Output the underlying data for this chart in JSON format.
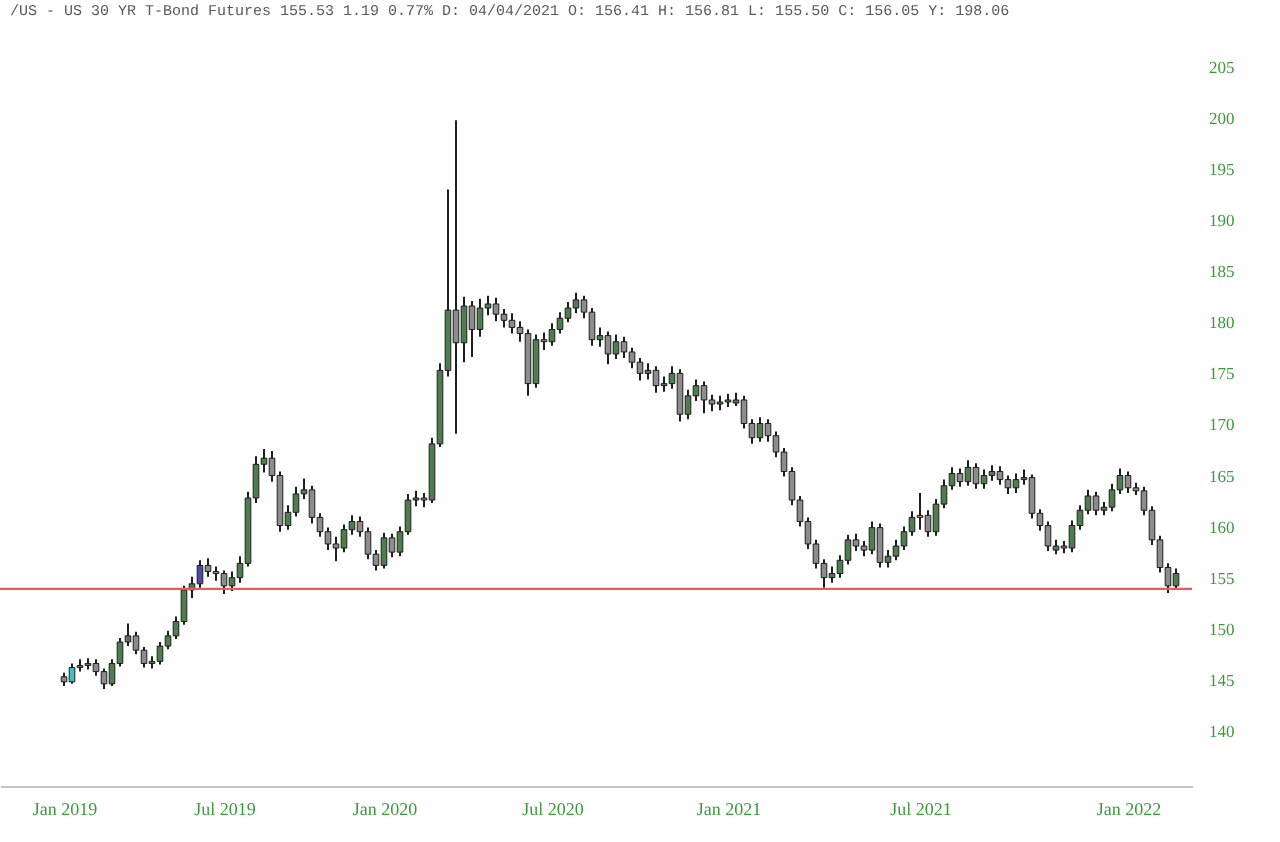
{
  "chart_data": {
    "type": "candlestick",
    "title": "/US - US 30 YR T-Bond Futures 155.53 1.19 0.77% D: 04/04/2021 O: 156.41 H: 156.81 L: 155.50 C: 156.05 Y: 198.06",
    "categories": [
      "Jan 2019",
      null,
      null,
      null,
      null,
      null,
      null,
      null,
      null,
      null,
      null,
      null,
      null,
      null,
      null,
      null,
      null,
      null,
      null,
      null,
      "Jul 2019",
      null,
      null,
      null,
      null,
      null,
      null,
      null,
      null,
      null,
      null,
      null,
      null,
      null,
      null,
      null,
      null,
      null,
      null,
      null,
      "Jan 2020",
      null,
      null,
      null,
      null,
      null,
      null,
      null,
      null,
      null,
      null,
      null,
      null,
      null,
      null,
      null,
      null,
      null,
      null,
      null,
      null,
      "Jul 2020",
      null,
      null,
      null,
      null,
      null,
      null,
      null,
      null,
      null,
      null,
      null,
      null,
      null,
      null,
      null,
      null,
      null,
      null,
      null,
      null,
      null,
      "Jan 2021",
      null,
      null,
      null,
      null,
      null,
      null,
      null,
      null,
      null,
      null,
      null,
      null,
      null,
      null,
      null,
      null,
      null,
      null,
      null,
      null,
      null,
      null,
      null,
      "Jul 2021",
      null,
      null,
      null,
      null,
      null,
      null,
      null,
      null,
      null,
      null,
      null,
      null,
      null,
      null,
      null,
      null,
      null,
      null,
      null,
      null,
      null,
      null,
      null,
      null,
      null,
      "Jan 2022",
      null,
      null,
      null,
      null,
      null,
      null
    ],
    "ohlc": [
      [
        145.2,
        145.6,
        144.3,
        144.7
      ],
      [
        144.7,
        146.5,
        144.5,
        146.1
      ],
      [
        146.1,
        146.9,
        145.7,
        146.3
      ],
      [
        146.3,
        147.0,
        145.9,
        146.5
      ],
      [
        146.5,
        146.9,
        145.3,
        145.7
      ],
      [
        145.7,
        146.0,
        144.0,
        144.5
      ],
      [
        144.5,
        146.9,
        144.3,
        146.5
      ],
      [
        146.5,
        149.0,
        146.2,
        148.6
      ],
      [
        148.6,
        150.4,
        148.2,
        149.2
      ],
      [
        149.2,
        149.6,
        147.4,
        147.8
      ],
      [
        147.8,
        148.1,
        146.1,
        146.5
      ],
      [
        146.5,
        147.2,
        146.0,
        146.7
      ],
      [
        146.7,
        148.6,
        146.4,
        148.2
      ],
      [
        148.2,
        149.7,
        147.9,
        149.2
      ],
      [
        149.2,
        151.1,
        148.9,
        150.6
      ],
      [
        150.6,
        154.1,
        150.3,
        153.7
      ],
      [
        153.7,
        155.0,
        152.9,
        154.3
      ],
      [
        154.3,
        156.6,
        153.9,
        156.1
      ],
      [
        156.1,
        156.8,
        155.0,
        155.5
      ],
      [
        155.5,
        156.0,
        154.6,
        155.3
      ],
      [
        155.3,
        155.6,
        153.3,
        154.1
      ],
      [
        154.1,
        155.5,
        153.6,
        154.9
      ],
      [
        154.9,
        157.0,
        154.4,
        156.3
      ],
      [
        156.3,
        163.3,
        156.0,
        162.7
      ],
      [
        162.7,
        166.8,
        162.2,
        166.0
      ],
      [
        166.0,
        167.5,
        165.2,
        166.6
      ],
      [
        166.6,
        167.3,
        164.3,
        164.9
      ],
      [
        164.9,
        165.3,
        159.4,
        160.0
      ],
      [
        160.0,
        162.0,
        159.6,
        161.3
      ],
      [
        161.3,
        163.8,
        160.9,
        163.1
      ],
      [
        163.1,
        164.6,
        162.6,
        163.5
      ],
      [
        163.5,
        163.9,
        160.2,
        160.8
      ],
      [
        160.8,
        161.2,
        158.9,
        159.4
      ],
      [
        159.4,
        159.8,
        157.6,
        158.2
      ],
      [
        158.2,
        158.9,
        156.5,
        157.8
      ],
      [
        157.8,
        160.1,
        157.4,
        159.6
      ],
      [
        159.6,
        161.0,
        159.1,
        160.4
      ],
      [
        160.4,
        160.9,
        158.9,
        159.4
      ],
      [
        159.4,
        159.8,
        156.7,
        157.2
      ],
      [
        157.2,
        157.6,
        155.6,
        156.1
      ],
      [
        156.1,
        159.3,
        155.8,
        158.8
      ],
      [
        158.8,
        159.2,
        156.9,
        157.4
      ],
      [
        157.4,
        159.9,
        157.0,
        159.4
      ],
      [
        159.4,
        163.1,
        159.1,
        162.5
      ],
      [
        162.5,
        163.4,
        161.9,
        162.7
      ],
      [
        162.7,
        163.2,
        161.8,
        162.5
      ],
      [
        162.5,
        168.6,
        162.2,
        168.0
      ],
      [
        168.0,
        175.9,
        167.7,
        175.2
      ],
      [
        175.2,
        192.9,
        174.6,
        181.1
      ],
      [
        181.1,
        199.7,
        169.0,
        177.9
      ],
      [
        177.9,
        182.4,
        176.0,
        181.5
      ],
      [
        181.5,
        182.0,
        176.5,
        179.2
      ],
      [
        179.2,
        182.2,
        178.5,
        181.3
      ],
      [
        181.3,
        182.5,
        180.6,
        181.7
      ],
      [
        181.7,
        182.3,
        180.0,
        180.7
      ],
      [
        180.7,
        181.2,
        179.4,
        180.1
      ],
      [
        180.1,
        180.8,
        178.8,
        179.4
      ],
      [
        179.4,
        180.0,
        178.0,
        178.8
      ],
      [
        178.8,
        179.2,
        172.7,
        173.9
      ],
      [
        173.9,
        178.7,
        173.5,
        178.2
      ],
      [
        178.2,
        178.9,
        177.2,
        178.0
      ],
      [
        178.0,
        179.8,
        177.6,
        179.2
      ],
      [
        179.2,
        180.9,
        178.8,
        180.3
      ],
      [
        180.3,
        181.9,
        179.9,
        181.3
      ],
      [
        181.3,
        182.8,
        180.8,
        182.1
      ],
      [
        182.1,
        182.5,
        180.3,
        180.9
      ],
      [
        180.9,
        181.3,
        177.6,
        178.2
      ],
      [
        178.2,
        179.4,
        177.5,
        178.6
      ],
      [
        178.6,
        179.0,
        175.8,
        176.8
      ],
      [
        176.8,
        178.7,
        176.3,
        178.0
      ],
      [
        178.0,
        178.5,
        176.4,
        177.0
      ],
      [
        177.0,
        177.4,
        175.4,
        176.0
      ],
      [
        176.0,
        176.4,
        174.2,
        174.9
      ],
      [
        174.9,
        175.9,
        174.3,
        175.2
      ],
      [
        175.2,
        175.6,
        173.0,
        173.7
      ],
      [
        173.7,
        174.6,
        173.1,
        173.9
      ],
      [
        173.9,
        175.6,
        173.4,
        174.9
      ],
      [
        174.9,
        175.3,
        170.2,
        170.9
      ],
      [
        170.9,
        173.3,
        170.4,
        172.7
      ],
      [
        172.7,
        174.3,
        172.2,
        173.7
      ],
      [
        173.7,
        174.1,
        171.0,
        172.3
      ],
      [
        172.3,
        172.8,
        171.2,
        171.9
      ],
      [
        171.9,
        172.7,
        171.3,
        172.1
      ],
      [
        172.1,
        172.9,
        171.6,
        172.3
      ],
      [
        172.0,
        173.0,
        171.7,
        172.3
      ],
      [
        172.3,
        172.7,
        169.5,
        170.0
      ],
      [
        170.0,
        170.4,
        168.0,
        168.6
      ],
      [
        168.6,
        170.6,
        168.2,
        170.0
      ],
      [
        170.0,
        170.4,
        168.2,
        168.8
      ],
      [
        168.8,
        169.2,
        166.7,
        167.2
      ],
      [
        167.2,
        167.6,
        164.8,
        165.3
      ],
      [
        165.3,
        165.7,
        162.0,
        162.5
      ],
      [
        162.5,
        162.9,
        159.9,
        160.4
      ],
      [
        160.4,
        160.8,
        157.7,
        158.2
      ],
      [
        158.2,
        158.6,
        155.8,
        156.3
      ],
      [
        156.3,
        156.7,
        153.9,
        154.9
      ],
      [
        154.9,
        156.0,
        154.4,
        155.3
      ],
      [
        155.3,
        157.1,
        154.9,
        156.6
      ],
      [
        156.6,
        159.1,
        156.2,
        158.6
      ],
      [
        158.6,
        159.2,
        157.5,
        158.0
      ],
      [
        158.0,
        158.5,
        157.0,
        157.6
      ],
      [
        157.6,
        160.4,
        157.2,
        159.8
      ],
      [
        159.8,
        160.2,
        155.9,
        156.4
      ],
      [
        156.4,
        157.6,
        155.9,
        157.0
      ],
      [
        157.0,
        158.6,
        156.6,
        158.0
      ],
      [
        158.0,
        159.9,
        157.6,
        159.4
      ],
      [
        159.4,
        161.4,
        159.0,
        160.8
      ],
      [
        160.8,
        163.2,
        159.6,
        161.0
      ],
      [
        161.0,
        161.5,
        158.9,
        159.4
      ],
      [
        159.4,
        162.6,
        159.0,
        162.1
      ],
      [
        162.1,
        164.5,
        161.7,
        163.9
      ],
      [
        163.9,
        165.7,
        163.5,
        165.1
      ],
      [
        165.1,
        165.6,
        163.8,
        164.3
      ],
      [
        164.3,
        166.4,
        163.9,
        165.7
      ],
      [
        165.7,
        166.1,
        163.6,
        164.1
      ],
      [
        164.1,
        165.5,
        163.6,
        164.9
      ],
      [
        164.9,
        165.9,
        164.4,
        165.3
      ],
      [
        165.3,
        165.8,
        164.0,
        164.5
      ],
      [
        164.5,
        164.9,
        163.1,
        163.7
      ],
      [
        163.7,
        165.1,
        163.2,
        164.5
      ],
      [
        164.5,
        165.5,
        164.0,
        164.7
      ],
      [
        164.7,
        165.0,
        160.7,
        161.2
      ],
      [
        161.2,
        161.6,
        159.5,
        160.0
      ],
      [
        160.0,
        160.4,
        157.5,
        158.0
      ],
      [
        157.6,
        158.6,
        157.2,
        158.0
      ],
      [
        158.0,
        158.5,
        157.3,
        157.8
      ],
      [
        157.8,
        160.5,
        157.4,
        160.0
      ],
      [
        160.0,
        162.0,
        159.6,
        161.5
      ],
      [
        161.5,
        163.5,
        161.1,
        162.9
      ],
      [
        162.9,
        163.3,
        161.0,
        161.5
      ],
      [
        161.5,
        162.3,
        161.0,
        161.8
      ],
      [
        161.8,
        164.1,
        161.4,
        163.5
      ],
      [
        163.5,
        165.6,
        163.1,
        164.9
      ],
      [
        164.9,
        165.3,
        163.2,
        163.7
      ],
      [
        163.7,
        164.2,
        163.0,
        163.4
      ],
      [
        163.4,
        163.8,
        161.0,
        161.5
      ],
      [
        161.5,
        161.9,
        158.1,
        158.6
      ],
      [
        158.6,
        159.0,
        155.4,
        155.9
      ],
      [
        155.9,
        156.3,
        153.4,
        154.1
      ],
      [
        154.1,
        155.8,
        153.7,
        155.3
      ]
    ],
    "colors": [
      "#8c8c8c",
      "#3fbfbf",
      "#4e7d4e",
      "#4e7d4e",
      "#8c8c8c",
      "#8c8c8c",
      "#4e7d4e",
      "#4e7d4e",
      "#4e7d4e",
      "#8c8c8c",
      "#8c8c8c",
      "#4e7d4e",
      "#4e7d4e",
      "#4e7d4e",
      "#4e7d4e",
      "#4e7d4e",
      "#4e7d4e",
      "#4a4aa8",
      "#8c8c8c",
      "#8c8c8c",
      "#8c8c8c",
      "#4e7d4e",
      "#4e7d4e",
      "#4e7d4e",
      "#4e7d4e",
      "#4e7d4e",
      "#8c8c8c",
      "#8c8c8c",
      "#4e7d4e",
      "#4e7d4e",
      "#4e7d4e",
      "#8c8c8c",
      "#8c8c8c",
      "#8c8c8c",
      "#8c8c8c",
      "#4e7d4e",
      "#4e7d4e",
      "#8c8c8c",
      "#8c8c8c",
      "#8c8c8c",
      "#4e7d4e",
      "#8c8c8c",
      "#4e7d4e",
      "#4e7d4e",
      "#4e7d4e",
      "#8c8c8c",
      "#4e7d4e",
      "#4e7d4e",
      "#4e7d4e",
      "#8c8c8c",
      "#4e7d4e",
      "#8c8c8c",
      "#4e7d4e",
      "#4e7d4e",
      "#8c8c8c",
      "#8c8c8c",
      "#8c8c8c",
      "#8c8c8c",
      "#8c8c8c",
      "#4e7d4e",
      "#8c8c8c",
      "#4e7d4e",
      "#4e7d4e",
      "#4e7d4e",
      "#4e7d4e",
      "#8c8c8c",
      "#8c8c8c",
      "#4e7d4e",
      "#8c8c8c",
      "#4e7d4e",
      "#8c8c8c",
      "#8c8c8c",
      "#8c8c8c",
      "#4e7d4e",
      "#8c8c8c",
      "#4e7d4e",
      "#4e7d4e",
      "#8c8c8c",
      "#4e7d4e",
      "#4e7d4e",
      "#8c8c8c",
      "#8c8c8c",
      "#4e7d4e",
      "#4e7d4e",
      "#4e7d4e",
      "#8c8c8c",
      "#8c8c8c",
      "#4e7d4e",
      "#8c8c8c",
      "#8c8c8c",
      "#8c8c8c",
      "#8c8c8c",
      "#8c8c8c",
      "#8c8c8c",
      "#8c8c8c",
      "#8c8c8c",
      "#4e7d4e",
      "#4e7d4e",
      "#4e7d4e",
      "#8c8c8c",
      "#8c8c8c",
      "#4e7d4e",
      "#8c8c8c",
      "#4e7d4e",
      "#4e7d4e",
      "#4e7d4e",
      "#4e7d4e",
      "#e8874a",
      "#8c8c8c",
      "#4e7d4e",
      "#4e7d4e",
      "#4e7d4e",
      "#8c8c8c",
      "#4e7d4e",
      "#8c8c8c",
      "#4e7d4e",
      "#4e7d4e",
      "#8c8c8c",
      "#8c8c8c",
      "#4e7d4e",
      "#4e7d4e",
      "#8c8c8c",
      "#8c8c8c",
      "#8c8c8c",
      "#4e7d4e",
      "#8c8c8c",
      "#4e7d4e",
      "#4e7d4e",
      "#4e7d4e",
      "#8c8c8c",
      "#4e7d4e",
      "#4e7d4e",
      "#4e7d4e",
      "#8c8c8c",
      "#8c8c8c",
      "#8c8c8c",
      "#8c8c8c",
      "#8c8c8c",
      "#8c8c8c",
      "#4e7d4e"
    ],
    "ylim": [
      134.5,
      205
    ],
    "yticks": [
      140,
      145,
      150,
      155,
      160,
      165,
      170,
      175,
      180,
      185,
      190,
      195,
      200,
      205
    ],
    "ref_lines": [
      {
        "axis": "y",
        "value": 153.8,
        "color": "#ee5a5a"
      }
    ]
  }
}
